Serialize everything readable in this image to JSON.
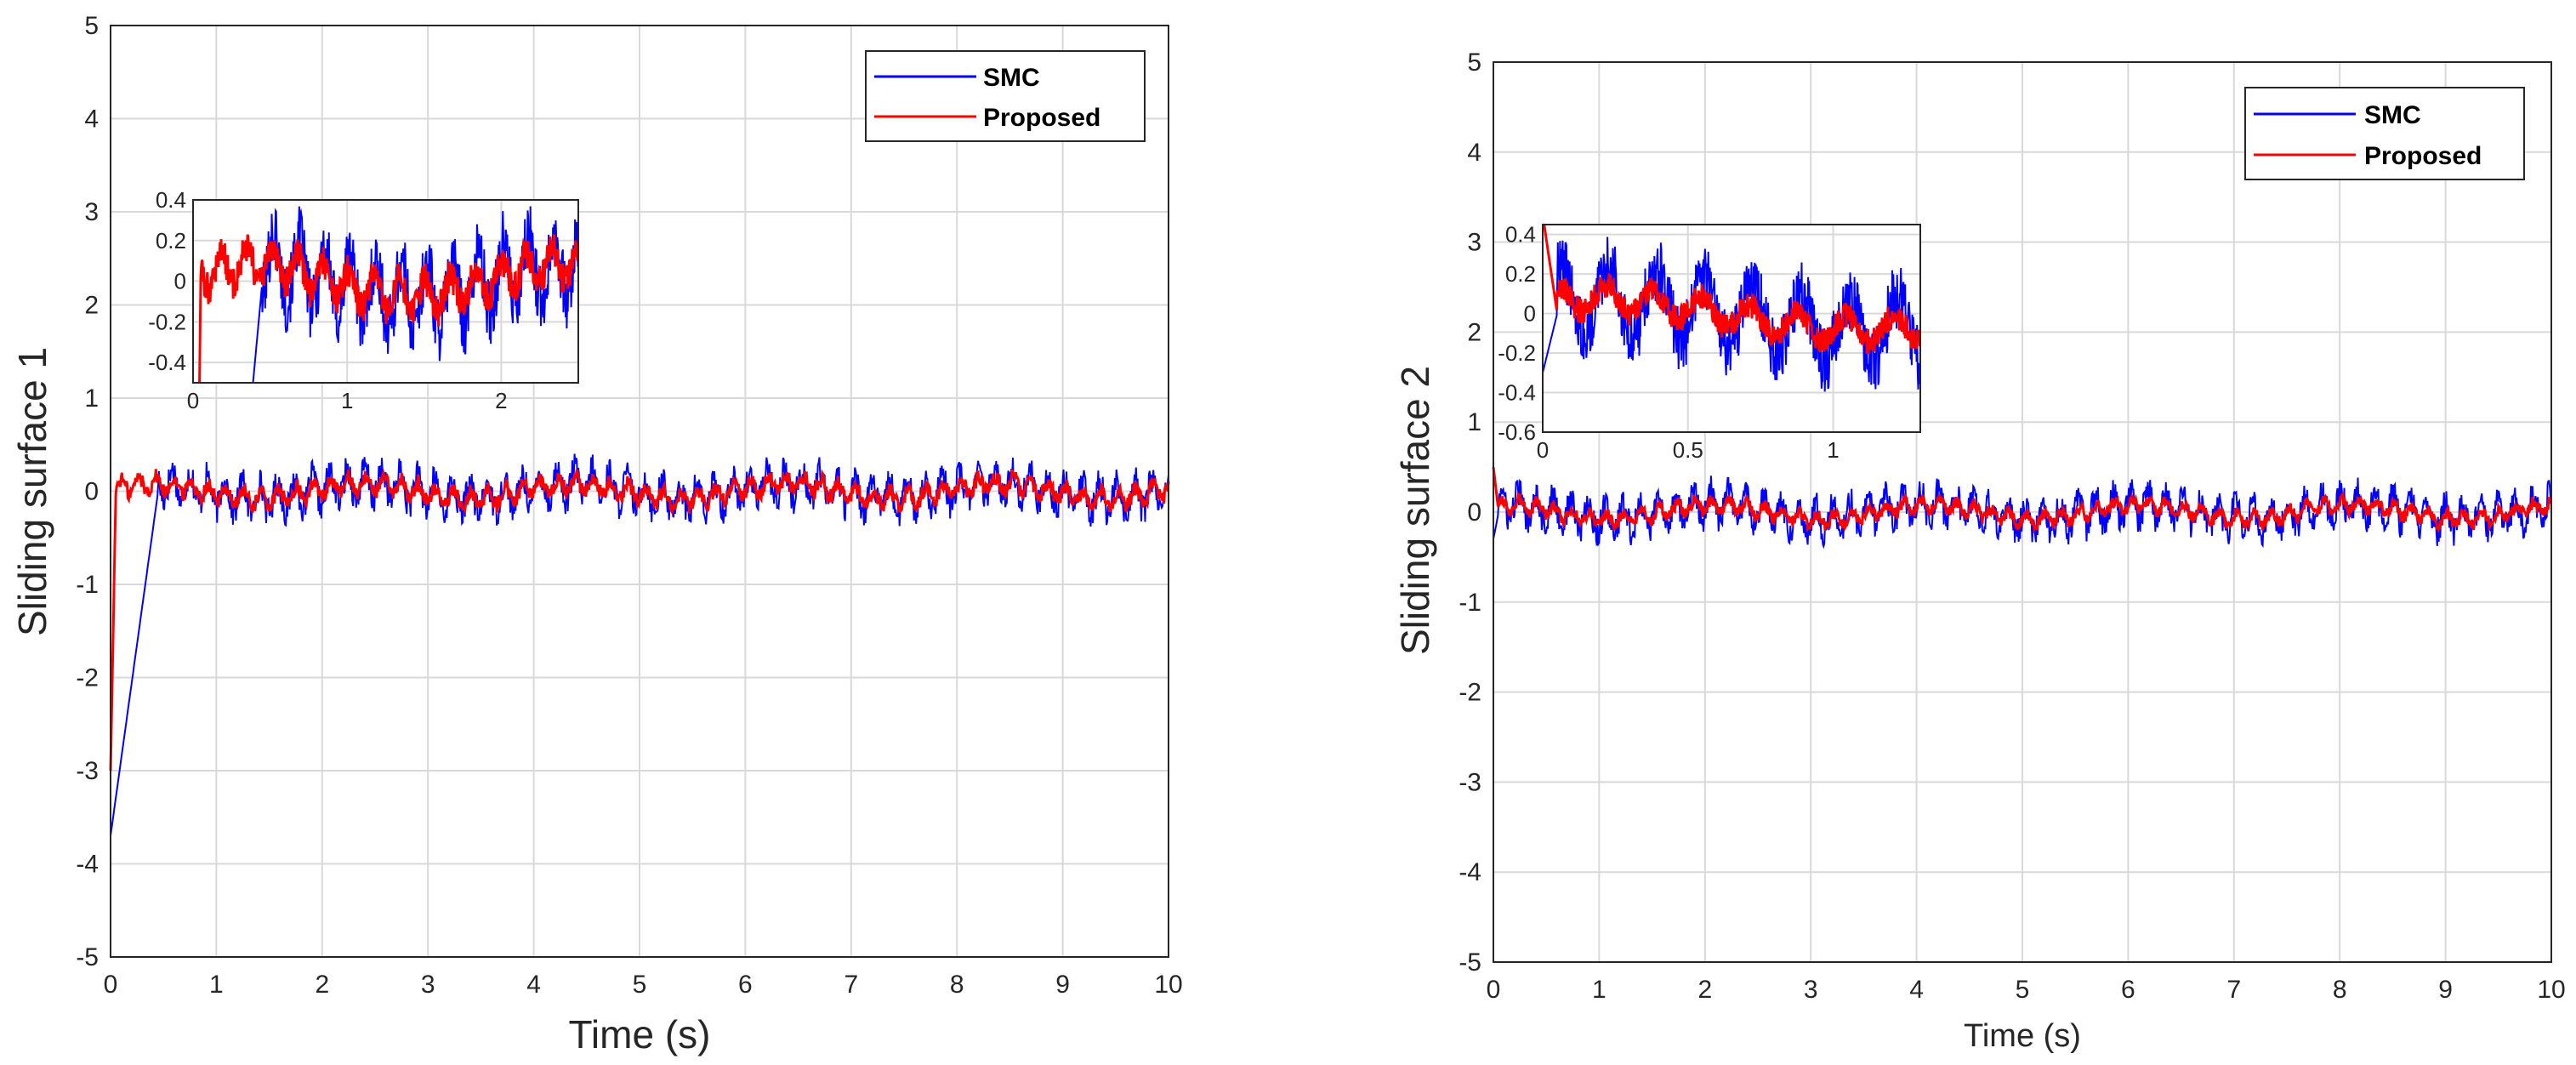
{
  "chart_data": [
    {
      "type": "line",
      "id": "left",
      "title": "",
      "xlabel": "Time (s)",
      "ylabel": "Sliding surface 1",
      "xlim": [
        0,
        10
      ],
      "ylim": [
        -5,
        5
      ],
      "xticks": [
        "0",
        "1",
        "2",
        "3",
        "4",
        "5",
        "6",
        "7",
        "8",
        "9",
        "10"
      ],
      "yticks": [
        "5",
        "4",
        "3",
        "2",
        "1",
        "0",
        "-1",
        "-2",
        "-3",
        "-4",
        "-5"
      ],
      "grid": true,
      "legend_position": "top-right",
      "series": [
        {
          "name": "SMC",
          "color": "#0000ff",
          "description": "starts near -3.7 at t=0, rises linearly to about 0 at t=0.45, then oscillates around 0 within about ±0.3 with slow undulation",
          "start_value": -3.7,
          "settle_time": 0.45,
          "steady_amplitude": 0.3
        },
        {
          "name": "Proposed",
          "color": "#ff0000",
          "description": "starts near -3 at t=0, jumps to about 0.2 almost immediately, then oscillates around 0 within about ±0.15",
          "start_value": -3.0,
          "settle_time": 0.05,
          "steady_amplitude": 0.15
        }
      ],
      "inset": {
        "xlim": [
          0,
          2.5
        ],
        "ylim": [
          -0.5,
          0.4
        ],
        "xticks": [
          "0",
          "1",
          "2"
        ],
        "yticks": [
          "0.4",
          "0.2",
          "0",
          "-0.2",
          "-0.4"
        ]
      }
    },
    {
      "type": "line",
      "id": "right",
      "title": "",
      "xlabel": "Time (s)",
      "ylabel": "Sliding surface 2",
      "xlim": [
        0,
        10
      ],
      "ylim": [
        -5,
        5
      ],
      "xticks": [
        "0",
        "1",
        "2",
        "3",
        "4",
        "5",
        "6",
        "7",
        "8",
        "9",
        "10"
      ],
      "yticks": [
        "5",
        "4",
        "3",
        "2",
        "1",
        "0",
        "-1",
        "-2",
        "-3",
        "-4",
        "-5"
      ],
      "grid": true,
      "legend_position": "top-right",
      "series": [
        {
          "name": "SMC",
          "color": "#0000ff",
          "description": "starts near -0.3, oscillates around 0 within about ±0.3 for the whole run",
          "start_value": -0.3,
          "settle_time": 0.05,
          "steady_amplitude": 0.3
        },
        {
          "name": "Proposed",
          "color": "#ff0000",
          "description": "brief spike near 0.5 at t=0, then oscillates around 0 within about ±0.12",
          "start_value": 0.5,
          "settle_time": 0.05,
          "steady_amplitude": 0.12
        }
      ],
      "inset": {
        "xlim": [
          0,
          1.3
        ],
        "ylim": [
          -0.6,
          0.45
        ],
        "xticks": [
          "0",
          "0.5",
          "1"
        ],
        "yticks": [
          "0.4",
          "0.2",
          "0",
          "-0.2",
          "-0.4",
          "-0.6"
        ]
      }
    }
  ]
}
